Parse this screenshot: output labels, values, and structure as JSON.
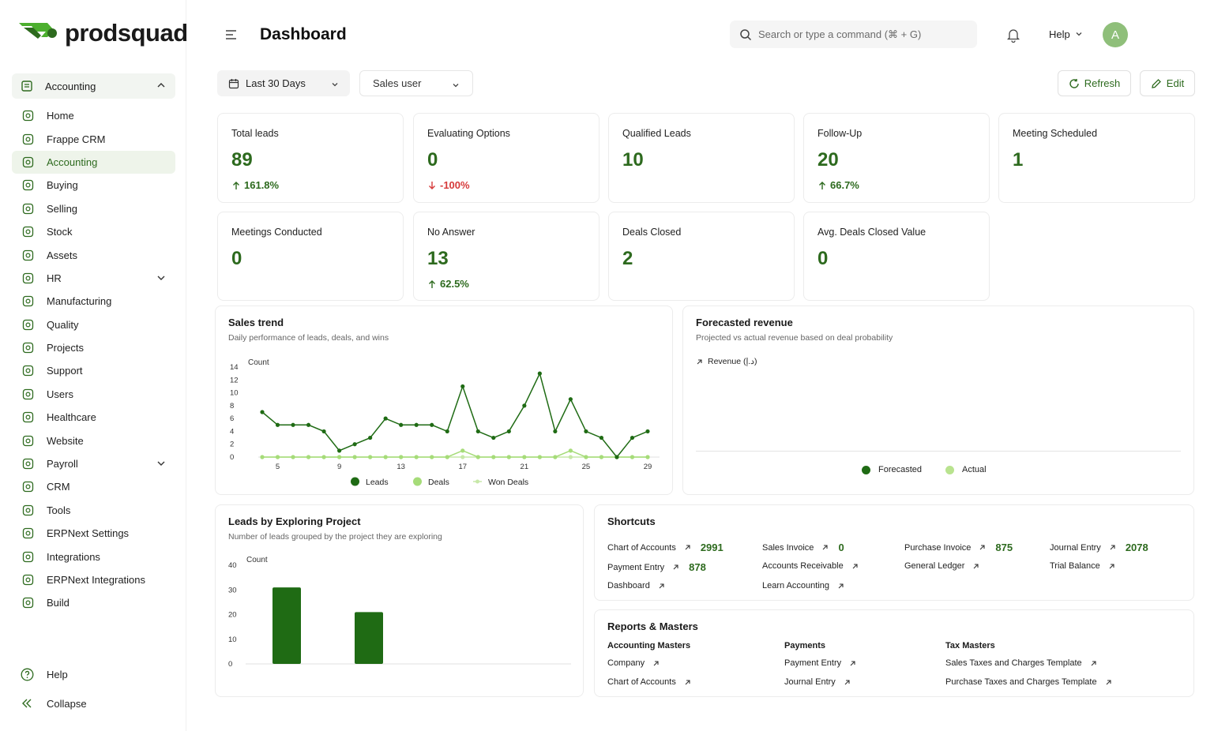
{
  "brand": {
    "name": "prodsquad",
    "accent": "#2d6a1e"
  },
  "sidebar": {
    "workspace": "Accounting",
    "items": [
      {
        "label": "Home",
        "icon": "home-icon"
      },
      {
        "label": "Frappe CRM",
        "icon": "crm-icon"
      },
      {
        "label": "Accounting",
        "icon": "accounting-icon",
        "active": true
      },
      {
        "label": "Buying",
        "icon": "buying-icon"
      },
      {
        "label": "Selling",
        "icon": "selling-icon"
      },
      {
        "label": "Stock",
        "icon": "stock-icon"
      },
      {
        "label": "Assets",
        "icon": "assets-icon"
      },
      {
        "label": "HR",
        "icon": "hr-icon",
        "expandable": true
      },
      {
        "label": "Manufacturing",
        "icon": "manufacturing-icon"
      },
      {
        "label": "Quality",
        "icon": "quality-icon"
      },
      {
        "label": "Projects",
        "icon": "projects-icon"
      },
      {
        "label": "Support",
        "icon": "support-icon"
      },
      {
        "label": "Users",
        "icon": "users-icon"
      },
      {
        "label": "Healthcare",
        "icon": "healthcare-icon"
      },
      {
        "label": "Website",
        "icon": "website-icon"
      },
      {
        "label": "Payroll",
        "icon": "payroll-icon",
        "expandable": true
      },
      {
        "label": "CRM",
        "icon": "crm-icon"
      },
      {
        "label": "Tools",
        "icon": "tools-icon"
      },
      {
        "label": "ERPNext Settings",
        "icon": "settings-icon"
      },
      {
        "label": "Integrations",
        "icon": "integrations-icon"
      },
      {
        "label": "ERPNext Integrations",
        "icon": "integrations-icon"
      },
      {
        "label": "Build",
        "icon": "build-icon"
      }
    ],
    "help": "Help",
    "collapse": "Collapse"
  },
  "header": {
    "title": "Dashboard",
    "search_placeholder": "Search or type a command (⌘ + G)",
    "help": "Help",
    "avatar_initial": "A"
  },
  "filters": {
    "date_range": "Last 30 Days",
    "user": "Sales user"
  },
  "actions": {
    "refresh": "Refresh",
    "edit": "Edit"
  },
  "kpis": [
    {
      "label": "Total leads",
      "value": "89",
      "delta": "161.8%",
      "direction": "up"
    },
    {
      "label": "Evaluating Options",
      "value": "0",
      "delta": "-100%",
      "direction": "down"
    },
    {
      "label": "Qualified Leads",
      "value": "10",
      "delta": "",
      "direction": ""
    },
    {
      "label": "Follow-Up",
      "value": "20",
      "delta": "66.7%",
      "direction": "up"
    },
    {
      "label": "Meeting Scheduled",
      "value": "1",
      "delta": "",
      "direction": ""
    },
    {
      "label": "Meetings Conducted",
      "value": "0",
      "delta": "",
      "direction": ""
    },
    {
      "label": "No Answer",
      "value": "13",
      "delta": "62.5%",
      "direction": "up"
    },
    {
      "label": "Deals Closed",
      "value": "2",
      "delta": "",
      "direction": ""
    },
    {
      "label": "Avg. Deals Closed Value",
      "value": "0",
      "delta": "",
      "direction": ""
    }
  ],
  "sales_trend": {
    "title": "Sales trend",
    "subtitle": "Daily performance of leads, deals, and wins"
  },
  "forecast": {
    "title": "Forecasted revenue",
    "subtitle": "Projected vs actual revenue based on deal probability",
    "ylabel": "Revenue (د.إ)",
    "legend": [
      "Forecasted",
      "Actual"
    ]
  },
  "leads_project": {
    "title": "Leads by Exploring Project",
    "subtitle": "Number of leads grouped by the project they are exploring"
  },
  "chart_data": [
    {
      "type": "line",
      "title": "Sales trend",
      "ylabel": "Count",
      "ylim": [
        0,
        14
      ],
      "yticks": [
        0,
        2,
        4,
        6,
        8,
        10,
        12,
        14
      ],
      "xticks": [
        5,
        9,
        13,
        17,
        21,
        25,
        29
      ],
      "x": [
        4,
        5,
        6,
        7,
        8,
        9,
        10,
        11,
        12,
        13,
        14,
        15,
        16,
        17,
        18,
        19,
        20,
        21,
        22,
        23,
        24,
        25,
        26,
        27,
        28,
        29
      ],
      "series": [
        {
          "name": "Leads",
          "color": "#1f6b14",
          "values": [
            7,
            5,
            5,
            5,
            4,
            1,
            2,
            3,
            6,
            5,
            5,
            5,
            4,
            11,
            4,
            3,
            4,
            8,
            13,
            4,
            9,
            4,
            3,
            0,
            3,
            4
          ]
        },
        {
          "name": "Deals",
          "color": "#a6dc79",
          "values": [
            0,
            0,
            0,
            0,
            0,
            0,
            0,
            0,
            0,
            0,
            0,
            0,
            0,
            1,
            0,
            0,
            0,
            0,
            0,
            0,
            1,
            0,
            0,
            0,
            0,
            0
          ]
        },
        {
          "name": "Won Deals",
          "color": "#c7e8a8",
          "values": [
            0,
            0,
            0,
            0,
            0,
            0,
            0,
            0,
            0,
            0,
            0,
            0,
            0,
            0,
            0,
            0,
            0,
            0,
            0,
            0,
            0,
            0,
            0,
            0,
            0,
            0
          ]
        }
      ],
      "legend": "bottom",
      "grid": false
    },
    {
      "type": "line",
      "title": "Forecasted revenue",
      "series": [
        {
          "name": "Forecasted",
          "color": "#1f6b14",
          "values": []
        },
        {
          "name": "Actual",
          "color": "#a6dc79",
          "values": []
        }
      ],
      "legend": "bottom"
    },
    {
      "type": "bar",
      "title": "Leads by Exploring Project",
      "ylabel": "Count",
      "ylim": [
        0,
        40
      ],
      "yticks": [
        0,
        10,
        20,
        30,
        40
      ],
      "categories": [
        "",
        ""
      ],
      "values": [
        31,
        21
      ],
      "color": "#1f6b14"
    }
  ],
  "shortcuts": {
    "title": "Shortcuts",
    "items": [
      {
        "label": "Chart of Accounts",
        "count": "2991"
      },
      {
        "label": "Sales Invoice",
        "count": "0"
      },
      {
        "label": "Purchase Invoice",
        "count": "875"
      },
      {
        "label": "Journal Entry",
        "count": "2078"
      },
      {
        "label": "Payment Entry",
        "count": "878"
      },
      {
        "label": "Accounts Receivable",
        "count": ""
      },
      {
        "label": "General Ledger",
        "count": ""
      },
      {
        "label": "Trial Balance",
        "count": ""
      },
      {
        "label": "Dashboard",
        "count": ""
      },
      {
        "label": "Learn Accounting",
        "count": ""
      }
    ]
  },
  "reports": {
    "title": "Reports & Masters",
    "groups": [
      {
        "heading": "Accounting Masters",
        "links": [
          "Company",
          "Chart of Accounts"
        ]
      },
      {
        "heading": "Payments",
        "links": [
          "Payment Entry",
          "Journal Entry"
        ]
      },
      {
        "heading": "Tax Masters",
        "links": [
          "Sales Taxes and Charges Template",
          "Purchase Taxes and Charges Template"
        ]
      }
    ]
  }
}
